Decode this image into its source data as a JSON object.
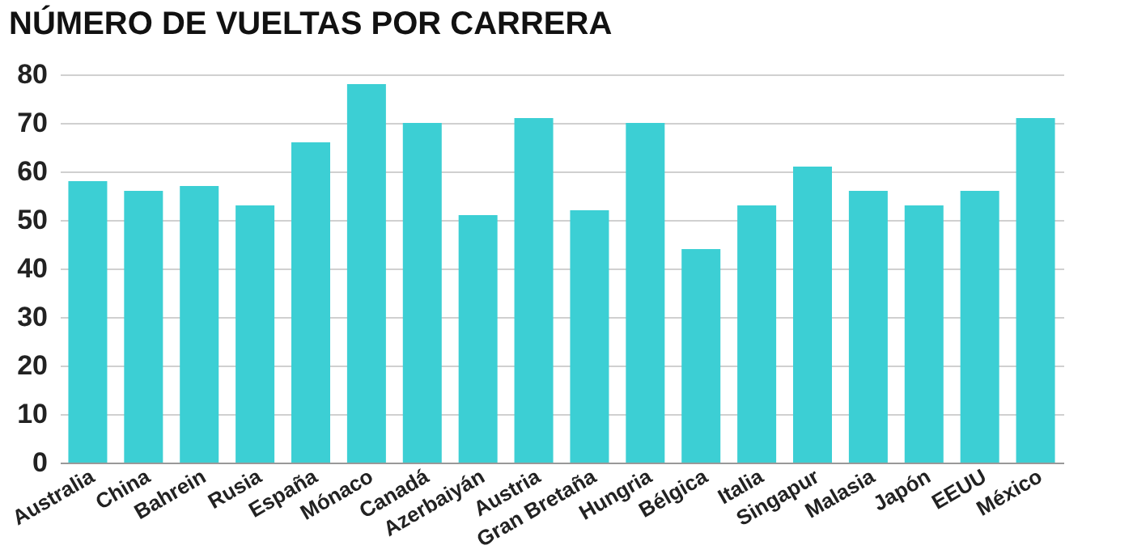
{
  "chart_data": {
    "type": "bar",
    "title": "NÚMERO DE VUELTAS POR CARRERA",
    "categories": [
      "Australia",
      "China",
      "Bahrein",
      "Rusia",
      "España",
      "Mónaco",
      "Canadá",
      "Azerbaiyán",
      "Austria",
      "Gran Bretaña",
      "Hungria",
      "Bélgica",
      "Italia",
      "Singapur",
      "Malasia",
      "Japón",
      "EEUU",
      "México"
    ],
    "values": [
      58,
      56,
      57,
      53,
      66,
      78,
      70,
      51,
      71,
      52,
      70,
      44,
      53,
      61,
      56,
      53,
      56,
      71
    ],
    "color": "#3ccfd4",
    "ylim": [
      0,
      80
    ],
    "yticks": [
      0,
      10,
      20,
      30,
      40,
      50,
      60,
      70,
      80
    ],
    "grid": "y"
  }
}
